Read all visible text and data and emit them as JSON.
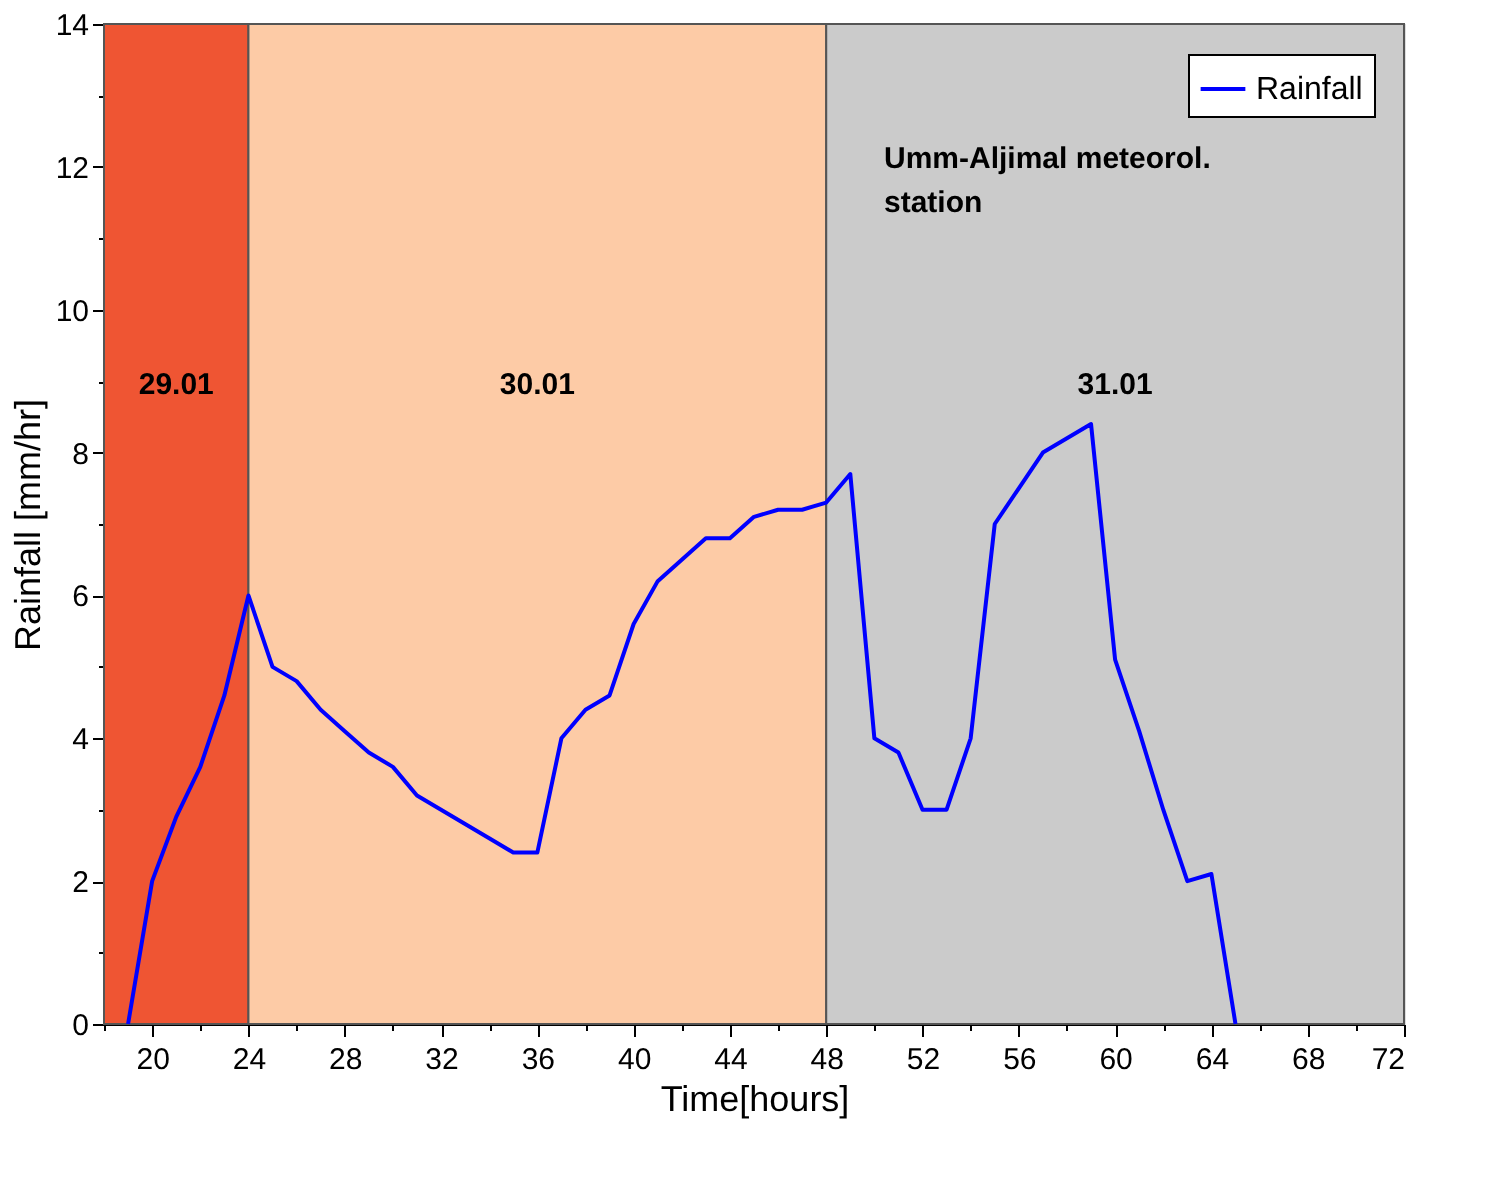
{
  "chart_data": {
    "type": "line",
    "xlabel": "Time[hours]",
    "ylabel": "Rainfall [mm/hr]",
    "x": [
      19,
      20,
      21,
      22,
      23,
      24,
      25,
      26,
      27,
      28,
      29,
      30,
      31,
      32,
      33,
      34,
      35,
      36,
      37,
      38,
      39,
      40,
      41,
      42,
      43,
      44,
      45,
      46,
      47,
      48,
      49,
      50,
      51,
      52,
      53,
      54,
      55,
      56,
      57,
      58,
      59,
      60,
      61,
      62,
      63,
      64,
      65
    ],
    "series": [
      {
        "name": "Rainfall",
        "color": "#0000ff",
        "values": [
          0,
          2.0,
          2.9,
          3.6,
          4.6,
          6.0,
          5.0,
          4.8,
          4.4,
          4.1,
          3.8,
          3.6,
          3.2,
          3.0,
          2.8,
          2.6,
          2.4,
          2.4,
          4.0,
          4.4,
          4.6,
          5.6,
          6.2,
          6.5,
          6.8,
          6.8,
          7.1,
          7.2,
          7.2,
          7.3,
          7.7,
          4.0,
          3.8,
          3.0,
          3.0,
          4.0,
          7.0,
          7.5,
          8.0,
          8.2,
          8.4,
          5.1,
          4.1,
          3.0,
          2.0,
          2.1,
          0
        ]
      }
    ],
    "xlim": [
      18,
      72
    ],
    "xticks": [
      {
        "value": 18,
        "label": null
      },
      20,
      {
        "value": 22,
        "label": null
      },
      24,
      {
        "value": 26,
        "label": null
      },
      28,
      {
        "value": 30,
        "label": null
      },
      32,
      {
        "value": 34,
        "label": null
      },
      36,
      {
        "value": 38,
        "label": null
      },
      40,
      {
        "value": 42,
        "label": null
      },
      44,
      {
        "value": 46,
        "label": null
      },
      48,
      {
        "value": 50,
        "label": null
      },
      52,
      {
        "value": 54,
        "label": null
      },
      56,
      {
        "value": 58,
        "label": null
      },
      60,
      {
        "value": 62,
        "label": null
      },
      64,
      {
        "value": 66,
        "label": null
      },
      68,
      {
        "value": 70,
        "label": null
      },
      72
    ],
    "ylim": [
      0,
      14
    ],
    "yticks": [
      0,
      {
        "value": 1,
        "label": null
      },
      2,
      {
        "value": 3,
        "label": null
      },
      4,
      {
        "value": 5,
        "label": null
      },
      6,
      {
        "value": 7,
        "label": null
      },
      8,
      {
        "value": 9,
        "label": null
      },
      10,
      {
        "value": 11,
        "label": null
      },
      12,
      {
        "value": 13,
        "label": null
      },
      14
    ],
    "bands": [
      {
        "axis": "x",
        "from": 18,
        "to": 24,
        "label": "29.01",
        "color": "#ef5533"
      },
      {
        "axis": "x",
        "from": 24,
        "to": 48,
        "label": "30.01",
        "color": "#fdcba6"
      },
      {
        "axis": "x",
        "from": 48,
        "to": 72,
        "label": "31.01",
        "color": "#cbcbcb"
      }
    ],
    "annotations": [
      "Umm-Aljimal meteorol.\nstation"
    ],
    "grid": false,
    "legend": "top right",
    "marker": "none",
    "line_style": "solid"
  }
}
